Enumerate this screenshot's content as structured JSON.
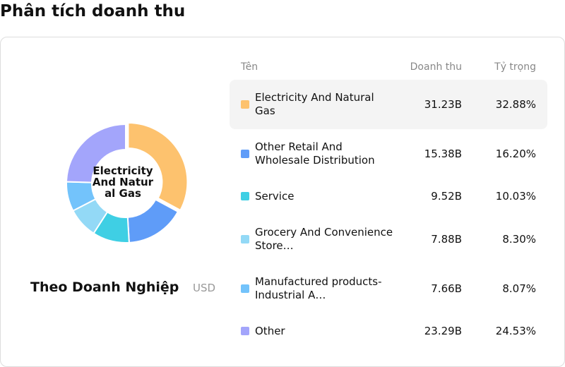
{
  "header": {
    "title": "Phân tích doanh thu"
  },
  "chart_data": {
    "type": "pie",
    "donut": true,
    "title": "Theo Doanh Nghiệp",
    "unit": "USD",
    "columns": [
      "Tên",
      "Doanh thu",
      "Tỷ trọng"
    ],
    "selected": 0,
    "categories": [
      "Electricity And Natural Gas",
      "Other Retail And Wholesale Distribution",
      "Service",
      "Grocery And Convenience Store…",
      "Manufactured products-Industrial A…",
      "Other"
    ],
    "revenues": [
      "31.23B",
      "15.38B",
      "9.52B",
      "7.88B",
      "7.66B",
      "23.29B"
    ],
    "values": [
      32.88,
      16.2,
      10.03,
      8.3,
      8.07,
      24.53
    ],
    "value_labels": [
      "32.88%",
      "16.20%",
      "10.03%",
      "8.30%",
      "8.07%",
      "24.53%"
    ],
    "colors": [
      "#fdc26e",
      "#5f9cf8",
      "#3fcfe4",
      "#93d9f6",
      "#73c3fb",
      "#a3a5fb"
    ]
  }
}
